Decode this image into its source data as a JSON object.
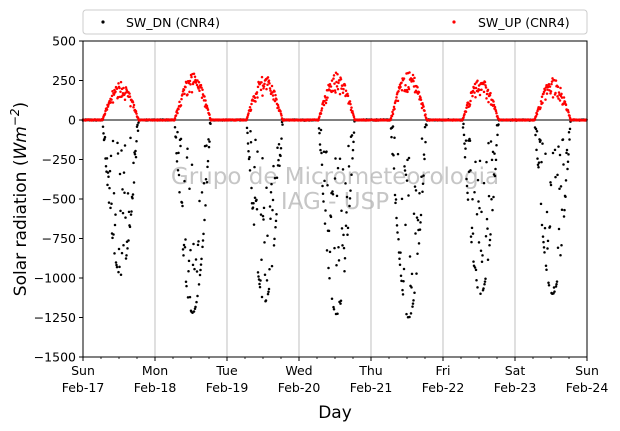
{
  "chart_data": {
    "type": "scatter",
    "xlabel": "Day",
    "ylabel_main": "Solar radiation (",
    "ylabel_unit": "Wm",
    "ylabel_exp": "−2",
    "ylabel_close": ")",
    "ylim": [
      -1500,
      500
    ],
    "yticks": [
      500,
      250,
      0,
      -250,
      -500,
      -750,
      -1000,
      -1250,
      -1500
    ],
    "ytick_labels": [
      "500",
      "250",
      "0",
      "−250",
      "−500",
      "−750",
      "−1000",
      "−1250",
      "−1500"
    ],
    "xlim": [
      "2019-02-17",
      "2019-02-24"
    ],
    "xticks": [
      {
        "date": "2019-02-17",
        "day": "Sun",
        "date_label": "Feb-17"
      },
      {
        "date": "2019-02-18",
        "day": "Mon",
        "date_label": "Feb-18"
      },
      {
        "date": "2019-02-19",
        "day": "Tue",
        "date_label": "Feb-19"
      },
      {
        "date": "2019-02-20",
        "day": "Wed",
        "date_label": "Feb-20"
      },
      {
        "date": "2019-02-21",
        "day": "Thu",
        "date_label": "Feb-21"
      },
      {
        "date": "2019-02-22",
        "day": "Fri",
        "date_label": "Feb-22"
      },
      {
        "date": "2019-02-23",
        "day": "Sat",
        "date_label": "Feb-23"
      },
      {
        "date": "2019-02-24",
        "day": "Sun",
        "date_label": "Feb-24"
      }
    ],
    "grid": "vertical at day ticks",
    "zero_line": true,
    "legend": {
      "placement": "top, above plot, two columns"
    },
    "watermark": [
      "Grupo de Micrometeorologia",
      "IAG - USP"
    ],
    "series": [
      {
        "name": "SW_DN (CNR4)",
        "color": "#000000",
        "marker": "dot",
        "daily_profile": "negative, sunrise about 06:30 to sunset about 18:30, noisy due to clouds",
        "daily_min": [
          {
            "date": "2019-02-17",
            "min": -980
          },
          {
            "date": "2019-02-18",
            "min": -1220
          },
          {
            "date": "2019-02-19",
            "min": -1150
          },
          {
            "date": "2019-02-20",
            "min": -1230
          },
          {
            "date": "2019-02-21",
            "min": -1250
          },
          {
            "date": "2019-02-22",
            "min": -1100
          },
          {
            "date": "2019-02-23",
            "min": -1100
          }
        ]
      },
      {
        "name": "SW_UP (CNR4)",
        "color": "#ff0000",
        "marker": "dot",
        "daily_profile": "positive, sunrise about 06:30 to sunset about 18:30",
        "daily_max": [
          {
            "date": "2019-02-17",
            "max": 240
          },
          {
            "date": "2019-02-18",
            "max": 300
          },
          {
            "date": "2019-02-19",
            "max": 285
          },
          {
            "date": "2019-02-20",
            "max": 305
          },
          {
            "date": "2019-02-21",
            "max": 310
          },
          {
            "date": "2019-02-22",
            "max": 265
          },
          {
            "date": "2019-02-23",
            "max": 265
          }
        ]
      }
    ]
  }
}
